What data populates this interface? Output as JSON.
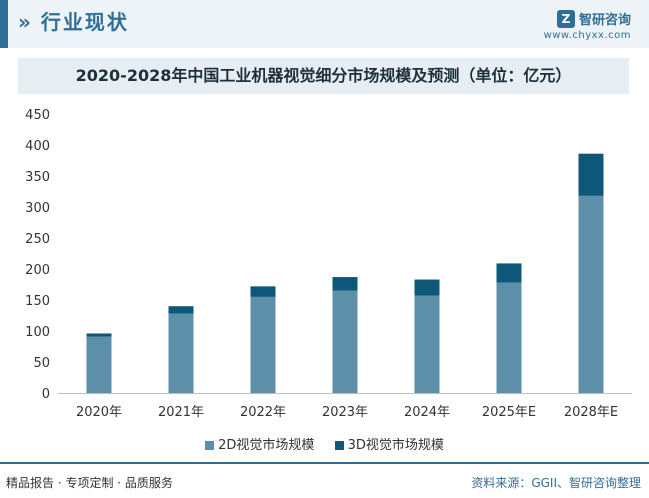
{
  "header": {
    "section_title": "行业现状",
    "logo_name": "智研咨询",
    "logo_url": "www.chyxx.com"
  },
  "chart_data": {
    "type": "bar",
    "stacked": true,
    "title": "2020-2028年中国工业机器视觉细分市场规模及预测（单位：亿元）",
    "categories": [
      "2020年",
      "2021年",
      "2022年",
      "2023年",
      "2024年",
      "2025年E",
      "2028年E"
    ],
    "series": [
      {
        "name": "2D视觉市场规模",
        "color": "#5d8fa8",
        "values": [
          91,
          128,
          155,
          165,
          157,
          178,
          318
        ]
      },
      {
        "name": "3D视觉市场规模",
        "color": "#0d5878",
        "values": [
          5,
          12,
          17,
          22,
          26,
          31,
          68
        ]
      }
    ],
    "ylim": [
      0,
      450
    ],
    "yticks": [
      0,
      50,
      100,
      150,
      200,
      250,
      300,
      350,
      400,
      450
    ],
    "grid": false,
    "legend_position": "bottom"
  },
  "footer": {
    "left": "精品报告 · 专项定制 · 品质服务",
    "right": "资料来源：GGII、智研咨询整理"
  }
}
